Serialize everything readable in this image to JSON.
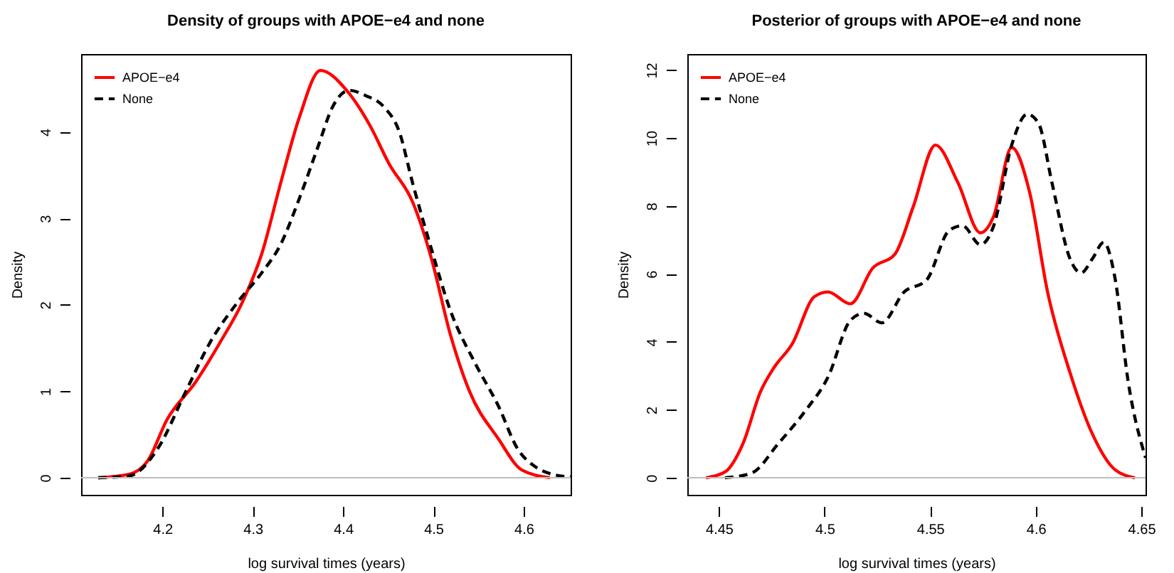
{
  "chart_data": [
    {
      "type": "line",
      "title": "Density of groups with APOE−e4 and none",
      "xlabel": "log survival times (years)",
      "ylabel": "Density",
      "xlim": [
        4.11,
        4.652
      ],
      "ylim": [
        -0.197,
        4.9
      ],
      "xticks": [
        4.2,
        4.3,
        4.4,
        4.5,
        4.6
      ],
      "yticks": [
        0,
        1,
        2,
        3,
        4
      ],
      "grid": false,
      "legend": "top left",
      "ref_lines": [
        {
          "axis": "y",
          "value": 0,
          "color": "#bebebe"
        }
      ],
      "series": [
        {
          "name": "APOE−e4",
          "color": "#ff0000",
          "line_style": "solid",
          "x": [
            4.129,
            4.163,
            4.184,
            4.205,
            4.237,
            4.263,
            4.289,
            4.31,
            4.331,
            4.352,
            4.375,
            4.404,
            4.43,
            4.451,
            4.477,
            4.498,
            4.519,
            4.54,
            4.572,
            4.598,
            4.629
          ],
          "values": [
            0,
            0.04,
            0.2,
            0.67,
            1.11,
            1.55,
            2.04,
            2.59,
            3.41,
            4.18,
            4.71,
            4.48,
            4.07,
            3.63,
            3.19,
            2.53,
            1.65,
            1.0,
            0.45,
            0.09,
            0
          ]
        },
        {
          "name": "None",
          "color": "#000000",
          "line_style": "dashed",
          "x": [
            4.129,
            4.163,
            4.195,
            4.226,
            4.252,
            4.284,
            4.31,
            4.331,
            4.352,
            4.373,
            4.388,
            4.407,
            4.425,
            4.446,
            4.462,
            4.477,
            4.498,
            4.519,
            4.546,
            4.572,
            4.593,
            4.614,
            4.632,
            4.652
          ],
          "values": [
            0,
            0.02,
            0.34,
            1.0,
            1.55,
            2.04,
            2.37,
            2.7,
            3.24,
            3.85,
            4.28,
            4.48,
            4.42,
            4.28,
            4.01,
            3.41,
            2.64,
            1.93,
            1.33,
            0.83,
            0.34,
            0.12,
            0.04,
            0.01
          ]
        }
      ]
    },
    {
      "type": "line",
      "title": "Posterior of groups with APOE−e4 and none",
      "xlabel": "log survival times (years)",
      "ylabel": "Density",
      "xlim": [
        4.435,
        4.652
      ],
      "ylim": [
        -0.5,
        12.47
      ],
      "xticks": [
        4.45,
        4.5,
        4.55,
        4.6,
        4.65
      ],
      "yticks": [
        0,
        2,
        4,
        6,
        8,
        10,
        12
      ],
      "grid": false,
      "legend": "top left",
      "ref_lines": [
        {
          "axis": "y",
          "value": 0,
          "color": "#bebebe"
        }
      ],
      "series": [
        {
          "name": "APOE−e4",
          "color": "#ff0000",
          "line_style": "solid",
          "x": [
            4.4438,
            4.4528,
            4.4613,
            4.4697,
            4.476,
            4.4846,
            4.4952,
            4.5016,
            4.5122,
            4.5228,
            4.5334,
            4.542,
            4.5525,
            4.5632,
            4.5738,
            4.5801,
            4.5886,
            4.5971,
            4.6056,
            4.6162,
            4.6269,
            4.6375,
            4.647
          ],
          "values": [
            0,
            0.17,
            1.0,
            2.54,
            3.24,
            3.93,
            5.33,
            5.47,
            5.12,
            6.17,
            6.59,
            7.98,
            9.79,
            8.68,
            7.21,
            7.7,
            9.72,
            8.4,
            5.47,
            3.1,
            1.28,
            0.24,
            0
          ]
        },
        {
          "name": "None",
          "color": "#000000",
          "line_style": "dashed",
          "x": [
            4.4528,
            4.4655,
            4.478,
            4.491,
            4.5016,
            4.5122,
            4.5186,
            4.5271,
            4.5377,
            4.5483,
            4.559,
            4.5653,
            4.5738,
            4.5801,
            4.5886,
            4.596,
            4.6014,
            4.6077,
            4.6162,
            4.6215,
            4.6269,
            4.6322,
            4.6375,
            4.6438,
            4.652
          ],
          "values": [
            0,
            0.14,
            1.0,
            1.98,
            2.96,
            4.63,
            4.84,
            4.56,
            5.47,
            5.82,
            7.28,
            7.42,
            6.86,
            7.42,
            9.79,
            10.7,
            10.42,
            8.68,
            6.45,
            6.03,
            6.45,
            6.93,
            5.89,
            2.82,
            0.59
          ]
        }
      ]
    }
  ]
}
